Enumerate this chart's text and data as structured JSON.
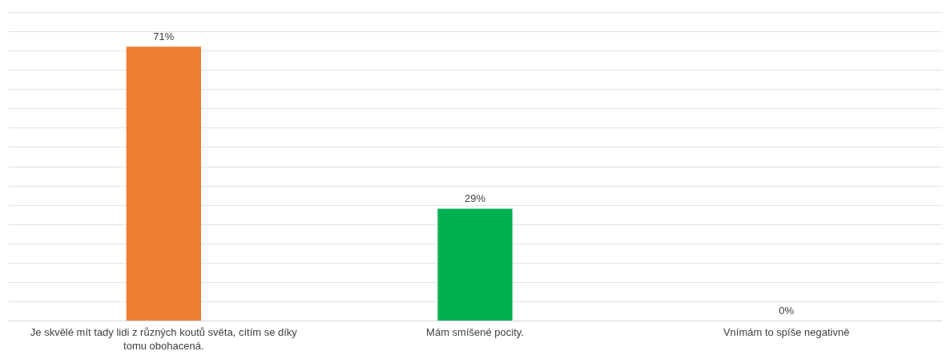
{
  "chart_data": {
    "type": "bar",
    "categories": [
      "Je skvělé mít tady lidi z různých koutů světa, cítím se díky tomu obohacená.",
      "Mám smíšené pocity.",
      "Vnímám to spíše negativně"
    ],
    "values": [
      71,
      29,
      0
    ],
    "colors": [
      "#ed7d31",
      "#00b050",
      "#4472c4"
    ],
    "value_labels": [
      "71%",
      "29%",
      "0%"
    ],
    "grid": "y",
    "tick_labels": "x"
  }
}
